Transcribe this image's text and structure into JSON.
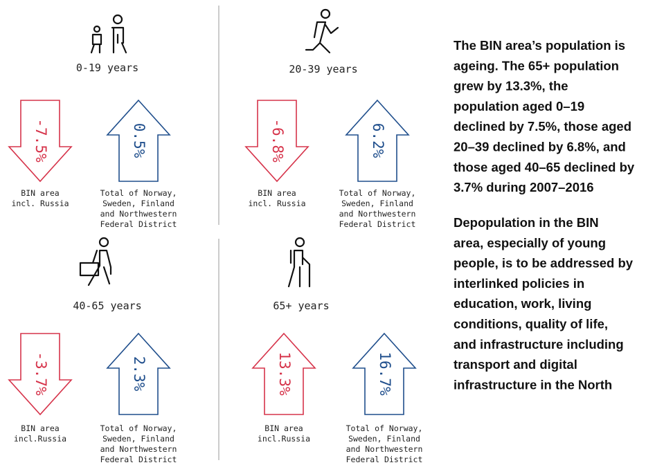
{
  "panels": [
    {
      "age": "0-19 years",
      "items": [
        {
          "value": "-7.5%",
          "caption": [
            "BIN area",
            "incl. Russia"
          ]
        },
        {
          "value": "0.5%",
          "caption": [
            "Total of Norway,",
            "Sweden, Finland",
            "and Northwestern",
            "Federal District"
          ]
        }
      ]
    },
    {
      "age": "20-39 years",
      "items": [
        {
          "value": "-6.8%",
          "caption": [
            "BIN area",
            "incl. Russia"
          ]
        },
        {
          "value": "6.2%",
          "caption": [
            "Total of Norway,",
            "Sweden, Finland",
            "and Northwestern",
            "Federal District"
          ]
        }
      ]
    },
    {
      "age": "40-65 years",
      "items": [
        {
          "value": "-3.7%",
          "caption": [
            "BIN area",
            "incl.Russia"
          ]
        },
        {
          "value": "2.3%",
          "caption": [
            "Total of Norway,",
            "Sweden, Finland",
            "and Northwestern",
            "Federal District"
          ]
        }
      ]
    },
    {
      "age": "65+ years",
      "items": [
        {
          "value": "13.3%",
          "caption": [
            "BIN area",
            "incl.Russia"
          ]
        },
        {
          "value": "16.7%",
          "caption": [
            "Total of Norway,",
            "Sweden, Finland",
            "and Northwestern",
            "Federal District"
          ]
        }
      ]
    }
  ],
  "text": {
    "paragraphs": [
      [
        "The BIN area’s population is",
        "ageing. The 65+ population",
        "grew by 13.3%, the",
        "population aged 0–19",
        "declined by 7.5%, those aged",
        "20–39 declined by 6.8%, and",
        "those aged 40–65 declined by",
        "3.7% during 2007–2016"
      ],
      [
        "Depopulation in the BIN",
        "area, especially of young",
        "people, is to be addressed by",
        "interlinked policies in",
        "education, work, living",
        "conditions, quality of life,",
        "and infrastructure including",
        "transport and digital",
        "infrastructure in the North"
      ]
    ]
  }
}
